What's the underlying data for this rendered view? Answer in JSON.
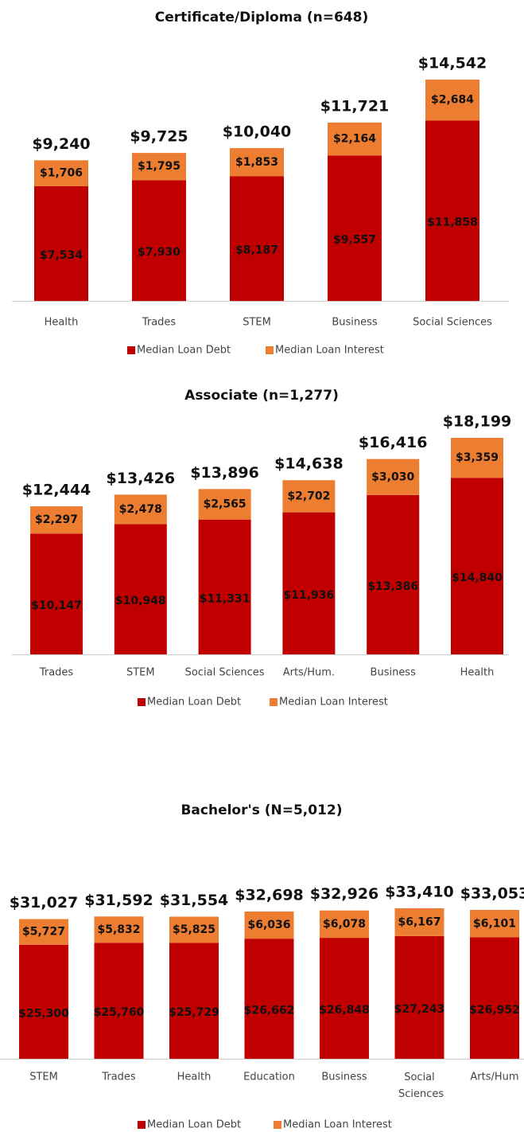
{
  "chart_data": [
    {
      "type": "bar",
      "stacked": true,
      "title": "Certificate/Diploma (n=648)",
      "categories": [
        "Health",
        "Trades",
        "STEM",
        "Business",
        "Social Sciences"
      ],
      "series": [
        {
          "name": "Median Loan Debt",
          "color": "#c00000",
          "values": [
            7534,
            7930,
            8187,
            9557,
            11858
          ],
          "value_labels": [
            "$7,534",
            "$7,930",
            "$8,187",
            "$9,557",
            "$11,858"
          ]
        },
        {
          "name": "Median Loan Interest",
          "color": "#ed7d31",
          "values": [
            1706,
            1795,
            1853,
            2164,
            2684
          ],
          "value_labels": [
            "$1,706",
            "$1,795",
            "$1,853",
            "$2,164",
            "$2,684"
          ]
        }
      ],
      "totals": [
        9240,
        9725,
        10040,
        11721,
        14542
      ],
      "total_labels": [
        "$9,240",
        "$9,725",
        "$10,040",
        "$11,721",
        "$14,542"
      ]
    },
    {
      "type": "bar",
      "stacked": true,
      "title": "Associate (n=1,277)",
      "categories": [
        "Trades",
        "STEM",
        "Social Sciences",
        "Arts/Hum.",
        "Business",
        "Health"
      ],
      "series": [
        {
          "name": "Median Loan Debt",
          "color": "#c00000",
          "values": [
            10147,
            10948,
            11331,
            11936,
            13386,
            14840
          ],
          "value_labels": [
            "$10,147",
            "$10,948",
            "$11,331",
            "$11,936",
            "$13,386",
            "$14,840"
          ]
        },
        {
          "name": "Median Loan Interest",
          "color": "#ed7d31",
          "values": [
            2297,
            2478,
            2565,
            2702,
            3030,
            3359
          ],
          "value_labels": [
            "$2,297",
            "$2,478",
            "$2,565",
            "$2,702",
            "$3,030",
            "$3,359"
          ]
        }
      ],
      "totals": [
        12444,
        13426,
        13896,
        14638,
        16416,
        18199
      ],
      "total_labels": [
        "$12,444",
        "$13,426",
        "$13,896",
        "$14,638",
        "$16,416",
        "$18,199"
      ]
    },
    {
      "type": "bar",
      "stacked": true,
      "title": "Bachelor's (N=5,012)",
      "categories": [
        "STEM",
        "Trades",
        "Health",
        "Education",
        "Business",
        "Social Sciences",
        "Arts/Hum"
      ],
      "series": [
        {
          "name": "Median Loan Debt",
          "color": "#c00000",
          "values": [
            25300,
            25760,
            25729,
            26662,
            26848,
            27243,
            26952
          ],
          "value_labels": [
            "$25,300",
            "$25,760",
            "$25,729",
            "$26,662",
            "$26,848",
            "$27,243",
            "$26,952"
          ]
        },
        {
          "name": "Median Loan Interest",
          "color": "#ed7d31",
          "values": [
            5727,
            5832,
            5825,
            6036,
            6078,
            6167,
            6101
          ],
          "value_labels": [
            "$5,727",
            "$5,832",
            "$5,825",
            "$6,036",
            "$6,078",
            "$6,167",
            "$6,101"
          ]
        }
      ],
      "totals": [
        31027,
        31592,
        31554,
        32698,
        32926,
        33410,
        33053
      ],
      "total_labels": [
        "$31,027",
        "$31,592",
        "$31,554",
        "$32,698",
        "$32,926",
        "$33,410",
        "$33,053"
      ]
    }
  ]
}
